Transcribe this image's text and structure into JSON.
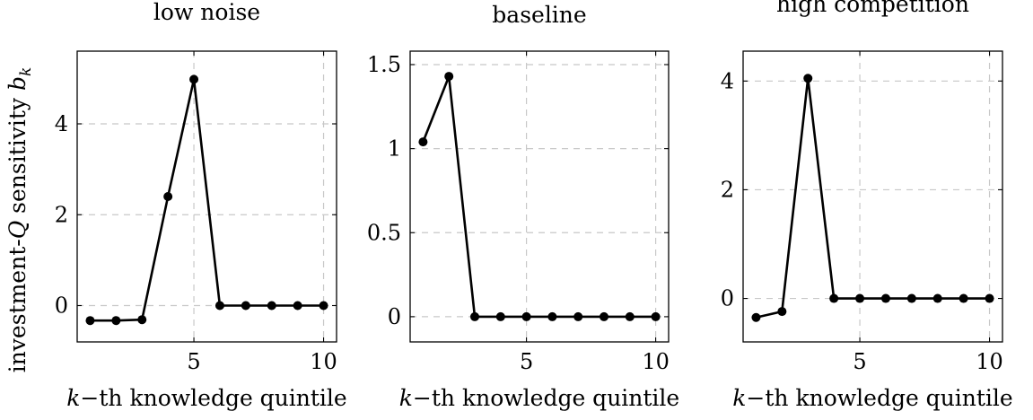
{
  "figure": {
    "ylabel": "investment-Q sensitivity b_k"
  },
  "chart_data": [
    {
      "type": "line",
      "title": "low noise",
      "xlabel": "k−th knowledge quintile",
      "ylabel": "investment-Q sensitivity b_k",
      "grid": true,
      "xlim": [
        0.5,
        10.5
      ],
      "ylim": [
        -0.8,
        5.6
      ],
      "xticks": [
        5,
        10
      ],
      "xtick_labels": [
        "5",
        "10"
      ],
      "yticks": [
        0,
        2,
        4
      ],
      "ytick_labels": [
        "0",
        "2",
        "4"
      ],
      "x": [
        1,
        2,
        3,
        4,
        5,
        6,
        7,
        8,
        9,
        10
      ],
      "y": [
        -0.33,
        -0.33,
        -0.31,
        2.4,
        4.98,
        0,
        0,
        0,
        0,
        0
      ]
    },
    {
      "type": "line",
      "title": "baseline",
      "xlabel": "k−th knowledge quintile",
      "ylabel": "",
      "grid": true,
      "xlim": [
        0.5,
        10.5
      ],
      "ylim": [
        -0.15,
        1.58
      ],
      "xticks": [
        5,
        10
      ],
      "xtick_labels": [
        "5",
        "10"
      ],
      "yticks": [
        0,
        0.5,
        1,
        1.5
      ],
      "ytick_labels": [
        "0",
        "0.5",
        "1",
        "1.5"
      ],
      "x": [
        1,
        2,
        3,
        4,
        5,
        6,
        7,
        8,
        9,
        10
      ],
      "y": [
        1.04,
        1.43,
        0,
        0,
        0,
        0,
        0,
        0,
        0,
        0
      ]
    },
    {
      "type": "line",
      "title": "high competition",
      "xlabel": "k−th knowledge quintile",
      "ylabel": "",
      "grid": true,
      "xlim": [
        0.5,
        10.5
      ],
      "ylim": [
        -0.8,
        4.55
      ],
      "xticks": [
        5,
        10
      ],
      "xtick_labels": [
        "5",
        "10"
      ],
      "yticks": [
        0,
        2,
        4
      ],
      "ytick_labels": [
        "0",
        "2",
        "4"
      ],
      "x": [
        1,
        2,
        3,
        4,
        5,
        6,
        7,
        8,
        9,
        10
      ],
      "y": [
        -0.35,
        -0.24,
        4.05,
        0,
        0,
        0,
        0,
        0,
        0,
        0
      ]
    }
  ]
}
